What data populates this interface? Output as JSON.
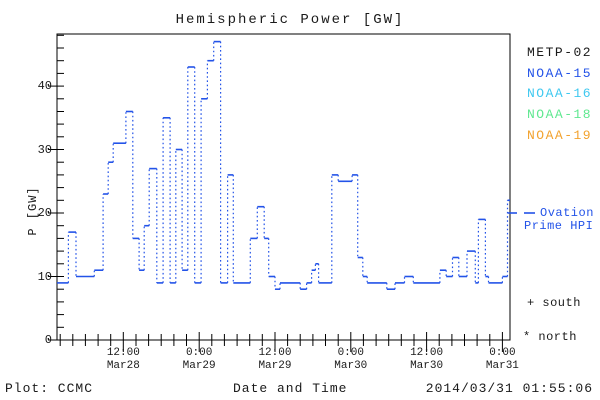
{
  "title": "Hemispheric Power [GW]",
  "footer": {
    "left": "Plot: CCMC",
    "right": "2014/03/31 01:55:06"
  },
  "legend": {
    "satellites": [
      {
        "label": "METP-02",
        "color": "#1a1a1a"
      },
      {
        "label": "NOAA-15",
        "color": "#2353e8"
      },
      {
        "label": "NOAA-16",
        "color": "#3fc8f0"
      },
      {
        "label": "NOAA-18",
        "color": "#5fe890"
      },
      {
        "label": "NOAA-19",
        "color": "#f2a22e"
      }
    ],
    "model": {
      "line1": "Ovation",
      "line2": "Prime HPI",
      "color": "#2353e8"
    },
    "south_label": "+ south",
    "north_label": "* north"
  },
  "chart_data": {
    "type": "line",
    "title": "Hemispheric Power [GW]",
    "xlabel": "Date and Time",
    "ylabel": "P [GW]",
    "line_style": "stepped, solid horizontals with dotted vertical connectors",
    "line_color": "#2353e8",
    "axis_color": "#000000",
    "ylim": [
      0,
      48.2
    ],
    "y_major_ticks": [
      {
        "value": 0,
        "label": "0"
      },
      {
        "value": 10,
        "label": "10"
      },
      {
        "value": 20,
        "label": "20"
      },
      {
        "value": 30,
        "label": "30"
      },
      {
        "value": 40,
        "label": "40"
      }
    ],
    "y_minor_step": 2,
    "xlim_hours": [
      1.5,
      73.2
    ],
    "x_hours_reference": "hours since Mar28 00:00",
    "x_major_ticks": [
      {
        "hour": 12,
        "line1": "12:00",
        "line2": "Mar28"
      },
      {
        "hour": 24,
        "line1": "0:00",
        "line2": "Mar29"
      },
      {
        "hour": 36,
        "line1": "12:00",
        "line2": "Mar29"
      },
      {
        "hour": 48,
        "line1": "0:00",
        "line2": "Mar30"
      },
      {
        "hour": 60,
        "line1": "12:00",
        "line2": "Mar30"
      },
      {
        "hour": 72,
        "line1": "0:00",
        "line2": "Mar31"
      }
    ],
    "x_minor_step_hours": 2,
    "steps_format": [
      "t0_hours",
      "t1_hours",
      "power_gw"
    ],
    "steps": [
      [
        1.5,
        3.3,
        9
      ],
      [
        3.3,
        4.5,
        17
      ],
      [
        4.5,
        7.4,
        10
      ],
      [
        7.4,
        8.8,
        11
      ],
      [
        8.8,
        9.6,
        23
      ],
      [
        9.6,
        10.4,
        28
      ],
      [
        10.4,
        12.4,
        31
      ],
      [
        12.4,
        13.5,
        36
      ],
      [
        13.5,
        14.5,
        16
      ],
      [
        14.5,
        15.3,
        11
      ],
      [
        15.3,
        16.1,
        18
      ],
      [
        16.1,
        17.3,
        27
      ],
      [
        17.3,
        18.3,
        9
      ],
      [
        18.3,
        19.4,
        35
      ],
      [
        19.4,
        20.3,
        9
      ],
      [
        20.3,
        21.3,
        30
      ],
      [
        21.3,
        22.2,
        11
      ],
      [
        22.2,
        23.3,
        43
      ],
      [
        23.3,
        24.3,
        9
      ],
      [
        24.3,
        25.3,
        38
      ],
      [
        25.3,
        26.3,
        44
      ],
      [
        26.3,
        27.4,
        47
      ],
      [
        27.4,
        28.5,
        9
      ],
      [
        28.5,
        29.4,
        26
      ],
      [
        29.4,
        32.1,
        9
      ],
      [
        32.1,
        33.2,
        16
      ],
      [
        33.2,
        34.3,
        21
      ],
      [
        34.3,
        35.0,
        16
      ],
      [
        35.0,
        36.0,
        10
      ],
      [
        36.0,
        36.8,
        8
      ],
      [
        36.8,
        40.0,
        9
      ],
      [
        40.0,
        41.0,
        8
      ],
      [
        41.0,
        41.8,
        9
      ],
      [
        41.8,
        42.4,
        11
      ],
      [
        42.4,
        42.9,
        12
      ],
      [
        42.9,
        45.0,
        9
      ],
      [
        45.0,
        46.0,
        26
      ],
      [
        46.0,
        48.2,
        25
      ],
      [
        48.2,
        49.1,
        26
      ],
      [
        49.1,
        49.9,
        13
      ],
      [
        49.9,
        50.6,
        10
      ],
      [
        50.6,
        53.7,
        9
      ],
      [
        53.7,
        55.0,
        8
      ],
      [
        55.0,
        56.5,
        9
      ],
      [
        56.5,
        57.9,
        10
      ],
      [
        57.9,
        62.1,
        9
      ],
      [
        62.1,
        63.1,
        11
      ],
      [
        63.1,
        64.1,
        10
      ],
      [
        64.1,
        65.1,
        13
      ],
      [
        65.1,
        66.4,
        10
      ],
      [
        66.4,
        67.7,
        14
      ],
      [
        67.7,
        68.2,
        9
      ],
      [
        68.2,
        69.3,
        19
      ],
      [
        69.3,
        69.8,
        10
      ],
      [
        69.8,
        72.0,
        9
      ],
      [
        72.0,
        72.8,
        10
      ],
      [
        72.8,
        73.2,
        22
      ]
    ]
  }
}
